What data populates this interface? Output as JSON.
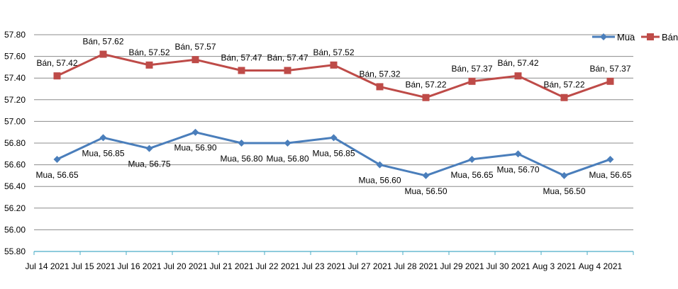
{
  "chart_data": {
    "type": "line",
    "categories": [
      "Jul 14 2021",
      "Jul 15 2021",
      "Jul 16 2021",
      "Jul 20 2021",
      "Jul 21 2021",
      "Jul 22 2021",
      "Jul 23 2021",
      "Jul 27 2021",
      "Jul 28 2021",
      "Jul 29 2021",
      "Jul 30 2021",
      "Aug 3 2021",
      "Aug 4 2021"
    ],
    "series": [
      {
        "name": "Mua",
        "color": "#4a7ebb",
        "marker": "diamond",
        "values": [
          56.65,
          56.85,
          56.75,
          56.9,
          56.8,
          56.8,
          56.85,
          56.6,
          56.5,
          56.65,
          56.7,
          56.5,
          56.65
        ],
        "labels": [
          "Mua, 56.65",
          "Mua, 56.85",
          "Mua, 56.75",
          "Mua, 56.90",
          "Mua, 56.80",
          "Mua, 56.80",
          "Mua, 56.85",
          "Mua, 56.60",
          "Mua, 56.50",
          "Mua, 56.65",
          "Mua, 56.70",
          "Mua, 56.50",
          "Mua, 56.65"
        ]
      },
      {
        "name": "Bán",
        "color": "#be4b48",
        "marker": "square",
        "values": [
          57.42,
          57.62,
          57.52,
          57.57,
          57.47,
          57.47,
          57.52,
          57.32,
          57.22,
          57.37,
          57.42,
          57.22,
          57.37
        ],
        "labels": [
          "Bán, 57.42",
          "Bán, 57.62",
          "Bán, 57.52",
          "Bán, 57.57",
          "Bán, 57.47",
          "Bán, 57.47",
          "Bán, 57.52",
          "Bán, 57.32",
          "Bán, 57.22",
          "Bán, 57.37",
          "Bán, 57.42",
          "Bán, 57.22",
          "Bán, 57.37"
        ]
      }
    ],
    "ylim": [
      55.8,
      57.8
    ],
    "yticks": [
      "55.80",
      "56.00",
      "56.20",
      "56.40",
      "56.60",
      "56.80",
      "57.00",
      "57.20",
      "57.40",
      "57.60",
      "57.80"
    ],
    "grid": true,
    "legend_position": "top-right"
  }
}
